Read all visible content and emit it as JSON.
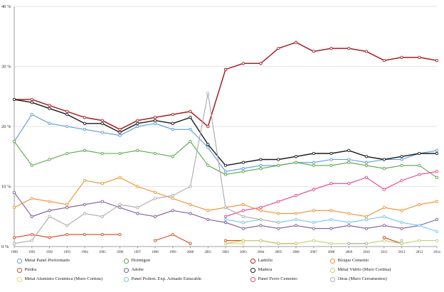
{
  "chart_data": {
    "type": "line",
    "title": "",
    "xlabel": "",
    "ylabel": "",
    "ylim": [
      0,
      40
    ],
    "grid": true,
    "legend_position": "bottom",
    "x": [
      1990,
      1991,
      1992,
      1993,
      1994,
      1995,
      1996,
      1997,
      1998,
      1999,
      2000,
      2001,
      2002,
      2003,
      2004,
      2005,
      2006,
      2007,
      2008,
      2009,
      2010,
      2011,
      2012,
      2013,
      2014
    ],
    "yticks": [
      {
        "value": 0,
        "label": "0 %"
      },
      {
        "value": 10,
        "label": "10 %"
      },
      {
        "value": 20,
        "label": "20 %"
      },
      {
        "value": 30,
        "label": "30 %"
      },
      {
        "value": 40,
        "label": "40 %"
      }
    ],
    "series": [
      {
        "name": "Metal Panel Preformado",
        "color": "#5b9bd5",
        "lw": 1.1,
        "values": [
          17.5,
          22,
          20.5,
          20,
          19.5,
          19,
          18.5,
          20,
          20.5,
          19.5,
          19.5,
          16.5,
          12.5,
          13,
          13.5,
          13.5,
          14,
          14,
          14.5,
          14.5,
          14,
          14.5,
          14.5,
          15.5,
          16
        ]
      },
      {
        "name": "Piedra",
        "color": "#d2491e",
        "lw": 1.1,
        "values": [
          1.5,
          2,
          1.5,
          2,
          2,
          2,
          2,
          null,
          1,
          2,
          0.5,
          null,
          1,
          1,
          1,
          0.5,
          0.5,
          null,
          null,
          null,
          null,
          1.5,
          0.5,
          null,
          null
        ]
      },
      {
        "name": "Metal Aluminio Cerámica (Muro Cortina)",
        "color": "#e6d96b",
        "lw": 1.1,
        "values": [
          null,
          null,
          null,
          null,
          null,
          null,
          null,
          null,
          null,
          null,
          null,
          null,
          0.5,
          0.5,
          null,
          null,
          null,
          null,
          null,
          null,
          null,
          null,
          null,
          null,
          null
        ]
      },
      {
        "name": "Hormigón",
        "color": "#56a544",
        "lw": 1.1,
        "values": [
          17.5,
          13.5,
          14.5,
          15.5,
          16,
          15.5,
          15.5,
          16,
          15.5,
          15,
          17.5,
          13.5,
          12,
          12.5,
          13,
          13.5,
          14,
          13.5,
          13.5,
          14,
          13.5,
          13,
          13.5,
          13.5,
          11.5
        ]
      },
      {
        "name": "Adobe",
        "color": "#7e57a2",
        "lw": 1.1,
        "values": [
          9,
          5,
          6,
          6.5,
          7,
          7.5,
          6.5,
          5.5,
          5,
          6,
          5.5,
          4.5,
          4,
          3,
          3.5,
          3,
          3.5,
          3,
          3,
          3.5,
          3,
          3.5,
          3,
          3.5,
          4.5
        ]
      },
      {
        "name": "Panel Poliest. Exp. Armado Estucable",
        "color": "#72c7e7",
        "lw": 1.1,
        "values": [
          null,
          null,
          null,
          null,
          null,
          null,
          null,
          null,
          null,
          null,
          null,
          null,
          4.5,
          4,
          4.5,
          4,
          4.5,
          4,
          4.5,
          4,
          4.5,
          5,
          4,
          3.5,
          2.5
        ]
      },
      {
        "name": "Ladrillo",
        "color": "#a52026",
        "lw": 1.5,
        "values": [
          24.5,
          24.5,
          23.5,
          22.5,
          21.5,
          21,
          19.5,
          21,
          21.5,
          22,
          22.5,
          20,
          29.5,
          30.5,
          30.5,
          33,
          34,
          32.5,
          33,
          33,
          32.5,
          31,
          31.5,
          31.5,
          31
        ]
      },
      {
        "name": "Madera",
        "color": "#1a1a1a",
        "lw": 1.4,
        "values": [
          24.5,
          24,
          23,
          22,
          20.5,
          20.5,
          19,
          20.5,
          21,
          20.5,
          21.5,
          17,
          13.5,
          14,
          14.5,
          14.5,
          15,
          15.5,
          15.5,
          16,
          15,
          14.5,
          15,
          15.5,
          15.5
        ]
      },
      {
        "name": "Panel Ferro Cemento",
        "color": "#e8418c",
        "lw": 1.1,
        "values": [
          null,
          null,
          null,
          null,
          null,
          null,
          null,
          null,
          null,
          null,
          null,
          null,
          5,
          6,
          6.5,
          7.5,
          8.5,
          9.5,
          10.5,
          10.5,
          11.5,
          9.5,
          11,
          12,
          12.5
        ]
      },
      {
        "name": "Bloque Cemento",
        "color": "#ee8f2e",
        "lw": 1.1,
        "values": [
          6.5,
          8,
          7.5,
          7,
          11,
          10.5,
          11.5,
          10,
          9,
          8,
          7,
          6,
          6.5,
          7,
          6,
          5.5,
          5.5,
          6,
          6,
          5.5,
          5,
          6.5,
          6,
          7,
          7.5
        ]
      },
      {
        "name": "Metal Vidrio (Muro Cortina)",
        "color": "#c3cd75",
        "lw": 1.1,
        "values": [
          null,
          null,
          null,
          null,
          null,
          null,
          null,
          null,
          null,
          null,
          null,
          null,
          0.5,
          1,
          1,
          0.5,
          0.5,
          1,
          0.5,
          0.5,
          0.5,
          1,
          0.5,
          1,
          1
        ]
      },
      {
        "name": "Otras (Muro Cerramentos)",
        "color": "#aaaaaa",
        "lw": 1.1,
        "values": [
          0.5,
          1,
          5,
          3.5,
          5.5,
          5,
          7,
          6.5,
          8,
          8.5,
          10,
          25.5,
          6.5,
          5,
          4.5,
          4,
          null,
          null,
          null,
          0.5,
          0.5,
          null,
          1,
          null,
          null
        ]
      }
    ]
  }
}
